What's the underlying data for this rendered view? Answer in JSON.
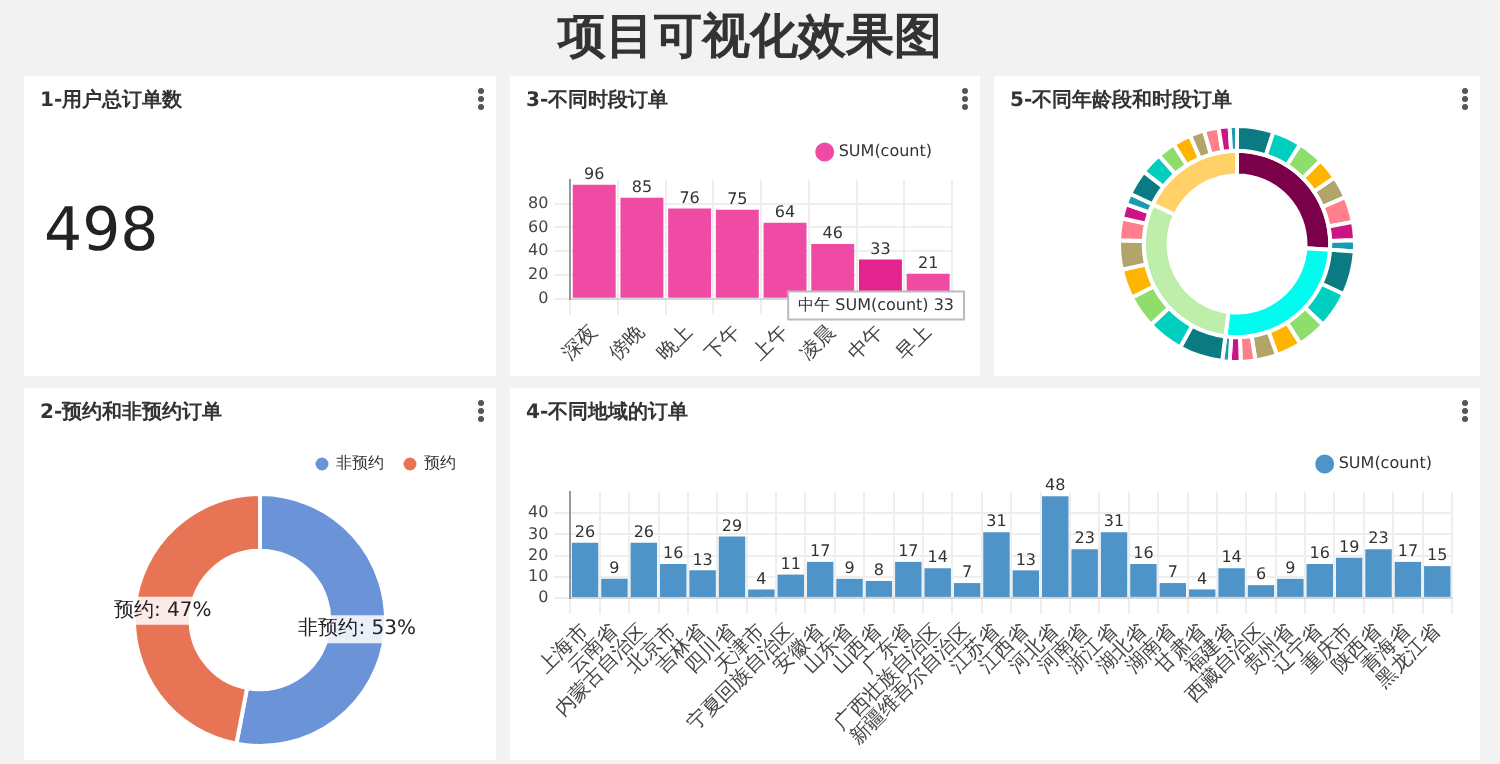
{
  "chart_data": [
    {
      "type": "other",
      "title": "项目可视化效果图"
    },
    {
      "type": "other",
      "title": "1-用户总订单数",
      "annotations": [
        "498"
      ]
    },
    {
      "type": "bar",
      "title": "3-不同时段订单",
      "categories": [
        "深夜",
        "傍晚",
        "晚上",
        "下午",
        "上午",
        "凌晨",
        "中午",
        "早上"
      ],
      "series": [
        {
          "name": "SUM(count)",
          "color": "#ef4ba5",
          "colors": [
            "#ef4ba5",
            "#ef4ba5",
            "#ef4ba5",
            "#ef4ba5",
            "#ef4ba5",
            "#ef4ba5",
            "#e3248f",
            "#ef4ba5"
          ],
          "values": [
            96,
            85,
            76,
            75,
            64,
            46,
            33,
            21
          ]
        }
      ],
      "ylim": [
        0,
        100
      ],
      "yticks": [
        0,
        20,
        40,
        60,
        80
      ],
      "grid": true,
      "legend": "top right",
      "data_labels": true,
      "annotations": [
        {
          "text": "中午 SUM(count) 33",
          "x": "中午",
          "y": 33
        }
      ]
    },
    {
      "type": "donut",
      "title": "5-不同年龄段和时段订单",
      "series": [
        {
          "colors": [
            "#0a7b83",
            "#00cfc0",
            "#8fde6b",
            "#ffb400",
            "#b3a46b",
            "#ff808b",
            "#cc1584",
            "#1b9bb1",
            "#0a7b83",
            "#00cfc0",
            "#8fde6b",
            "#ffb400",
            "#b3a46b",
            "#ff808b",
            "#cc1584",
            "#1b9bb1",
            "#0a7b83",
            "#00cfc0",
            "#8fde6b",
            "#ffb400",
            "#b3a46b",
            "#ff808b",
            "#cc1584",
            "#1b9bb1",
            "#0a7b83",
            "#00cfc0",
            "#8fde6b",
            "#ffb400",
            "#b3a46b",
            "#ff808b",
            "#cc1584",
            "#1b9bb1"
          ],
          "values": [
            5,
            4,
            3.5,
            3,
            3,
            3.5,
            2.5,
            1.5,
            6,
            5,
            4,
            3.5,
            3,
            2,
            1.5,
            1,
            6,
            5,
            4.5,
            4,
            4,
            3,
            2,
            1.5,
            3.5,
            3,
            2.5,
            2.5,
            2,
            2,
            1.5,
            1
          ]
        },
        {
          "colors": [
            "#7a004a",
            "#00fcef",
            "#bdeeaa",
            "#ffd166"
          ],
          "values": [
            26,
            26,
            30,
            18
          ]
        }
      ]
    },
    {
      "type": "donut",
      "title": "2-预约和非预约订单",
      "categories": [
        "非预约",
        "预约"
      ],
      "values": [
        53,
        47
      ],
      "colors": [
        "#6a93d8",
        "#e87456"
      ],
      "value_labels": [
        "非预约: 53%",
        "预约: 47%"
      ],
      "legend": "top right"
    },
    {
      "type": "bar",
      "title": "4-不同地域的订单",
      "categories": [
        "上海市",
        "云南省",
        "内蒙古自治区",
        "北京市",
        "吉林省",
        "四川省",
        "天津市",
        "宁夏回族自治区",
        "安徽省",
        "山东省",
        "山西省",
        "广东省",
        "广西壮族自治区",
        "新疆维吾尔自治区",
        "江苏省",
        "江西省",
        "河北省",
        "河南省",
        "浙江省",
        "湖北省",
        "湖南省",
        "甘肃省",
        "福建省",
        "西藏自治区",
        "贵州省",
        "辽宁省",
        "重庆市",
        "陕西省",
        "青海省",
        "黑龙江省"
      ],
      "series": [
        {
          "name": "SUM(count)",
          "color": "#4f94c8",
          "values": [
            26,
            9,
            26,
            16,
            13,
            29,
            4,
            11,
            17,
            9,
            8,
            17,
            14,
            7,
            31,
            13,
            48,
            23,
            31,
            16,
            7,
            4,
            14,
            6,
            9,
            16,
            19,
            23,
            17,
            15
          ]
        }
      ],
      "ylim": [
        0,
        50
      ],
      "yticks": [
        0,
        10,
        20,
        30,
        40
      ],
      "grid": true,
      "legend": "top right",
      "data_labels": true
    }
  ]
}
